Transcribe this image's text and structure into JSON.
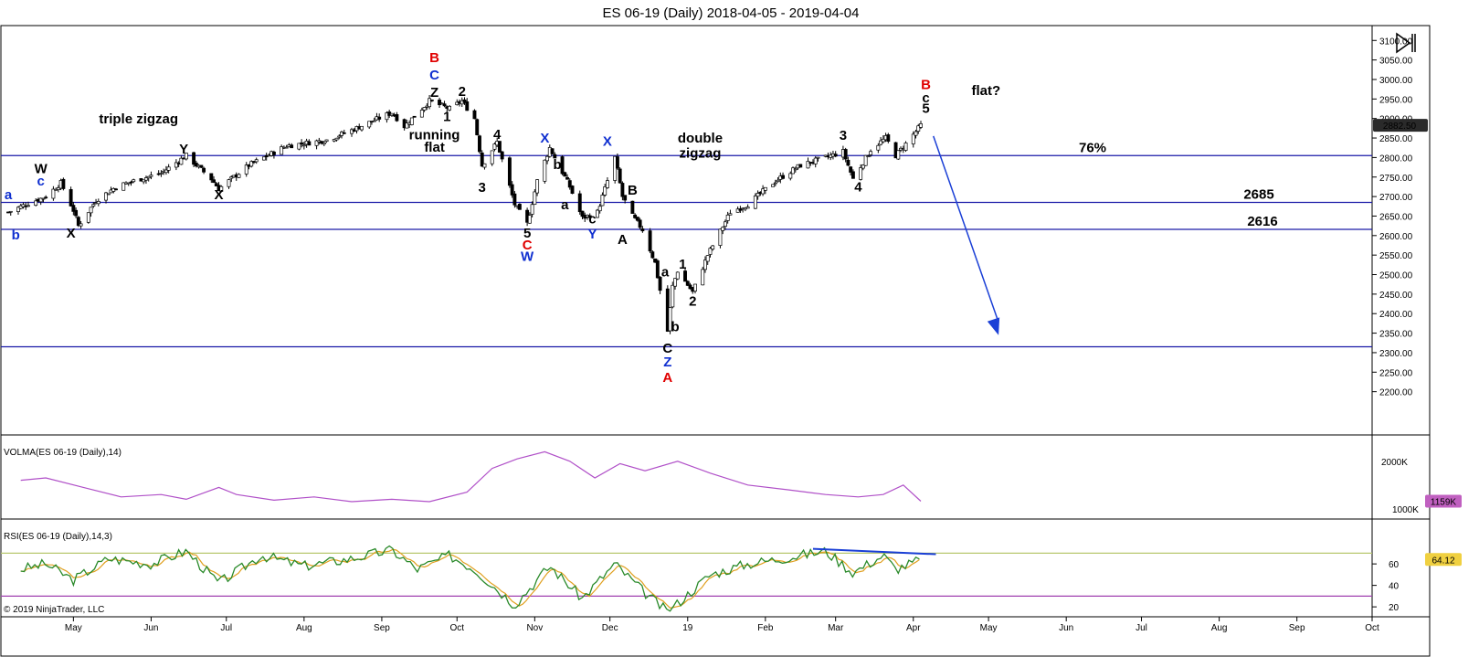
{
  "title": "ES 06-19 (Daily)  2018-04-05 - 2019-04-04",
  "copyright": "© 2019 NinjaTrader, LLC",
  "colors": {
    "up_candle": "#ffffff",
    "down_candle": "#000000",
    "hline": "#1a1aa8",
    "arrow": "#1a3fd6",
    "red": "#e00000",
    "blue": "#1030d0",
    "black": "#000000",
    "volma": "#b050c8",
    "rsi_fast": "#2a8a2a",
    "rsi_slow": "#e0a020",
    "rsi_upper": "#b8c870",
    "rsi_lower": "#a040b0",
    "price_badge": "#2a2a2a",
    "rsi_badge": "#f0d040",
    "vol_badge": "#c060c0"
  },
  "chart_data": {
    "type": "candlestick",
    "x_months": [
      "May",
      "Jun",
      "Jul",
      "Aug",
      "Sep",
      "Oct",
      "Nov",
      "Dec",
      "19",
      "Feb",
      "Mar",
      "Apr",
      "May",
      "Jun",
      "Jul",
      "Aug",
      "Sep",
      "Oct"
    ],
    "price_axis": {
      "ylim": [
        2150,
        3110
      ],
      "ticks": [
        "3100.00",
        "3050.00",
        "3000.00",
        "2950.00",
        "2900.00",
        "2850.00",
        "2800.00",
        "2750.00",
        "2700.00",
        "2650.00",
        "2600.00",
        "2550.00",
        "2500.00",
        "2450.00",
        "2400.00",
        "2350.00",
        "2300.00",
        "2250.00",
        "2200.00"
      ],
      "last_price": "2882.50"
    },
    "close_path": [
      [
        "2018-04-05",
        2660
      ],
      [
        "2018-04-12",
        2680
      ],
      [
        "2018-04-20",
        2700
      ],
      [
        "2018-04-26",
        2735
      ],
      [
        "2018-05-01",
        2665
      ],
      [
        "2018-05-03",
        2625
      ],
      [
        "2018-05-10",
        2690
      ],
      [
        "2018-05-18",
        2725
      ],
      [
        "2018-05-25",
        2740
      ],
      [
        "2018-06-05",
        2760
      ],
      [
        "2018-06-15",
        2805
      ],
      [
        "2018-06-25",
        2745
      ],
      [
        "2018-06-28",
        2720
      ],
      [
        "2018-07-10",
        2780
      ],
      [
        "2018-07-25",
        2830
      ],
      [
        "2018-08-10",
        2845
      ],
      [
        "2018-08-20",
        2870
      ],
      [
        "2018-09-05",
        2915
      ],
      [
        "2018-09-10",
        2880
      ],
      [
        "2018-09-20",
        2945
      ],
      [
        "2018-09-24",
        2935
      ],
      [
        "2018-09-28",
        2925
      ],
      [
        "2018-10-03",
        2945
      ],
      [
        "2018-10-08",
        2900
      ],
      [
        "2018-10-11",
        2780
      ],
      [
        "2018-10-17",
        2840
      ],
      [
        "2018-10-24",
        2680
      ],
      [
        "2018-10-29",
        2630
      ],
      [
        "2018-11-02",
        2740
      ],
      [
        "2018-11-07",
        2825
      ],
      [
        "2018-11-15",
        2725
      ],
      [
        "2018-11-20",
        2645
      ],
      [
        "2018-11-26",
        2660
      ],
      [
        "2018-12-03",
        2800
      ],
      [
        "2018-12-06",
        2700
      ],
      [
        "2018-12-10",
        2650
      ],
      [
        "2018-12-14",
        2615
      ],
      [
        "2018-12-19",
        2530
      ],
      [
        "2018-12-24",
        2355
      ],
      [
        "2018-12-26",
        2470
      ],
      [
        "2018-12-28",
        2510
      ],
      [
        "2019-01-03",
        2455
      ],
      [
        "2019-01-09",
        2550
      ],
      [
        "2019-01-18",
        2660
      ],
      [
        "2019-01-25",
        2680
      ],
      [
        "2019-02-05",
        2740
      ],
      [
        "2019-02-15",
        2780
      ],
      [
        "2019-02-25",
        2800
      ],
      [
        "2019-03-04",
        2815
      ],
      [
        "2019-03-08",
        2745
      ],
      [
        "2019-03-15",
        2820
      ],
      [
        "2019-03-21",
        2850
      ],
      [
        "2019-03-25",
        2805
      ],
      [
        "2019-03-29",
        2835
      ],
      [
        "2019-04-04",
        2882.5
      ]
    ],
    "horizontal_lines": [
      2805,
      2685,
      2616,
      2315
    ],
    "level_labels": [
      {
        "text": "76%",
        "price": 2805
      },
      {
        "text": "2685",
        "price": 2685
      },
      {
        "text": "2616",
        "price": 2616
      }
    ],
    "projection_arrow": {
      "from": [
        "2019-04-09",
        2855
      ],
      "to": [
        "2019-05-05",
        2345
      ]
    },
    "wave_labels": [
      {
        "text": "a",
        "date": "2018-04-05",
        "price": 2693,
        "color": "blue"
      },
      {
        "text": "b",
        "date": "2018-04-08",
        "price": 2590,
        "color": "blue"
      },
      {
        "text": "W",
        "date": "2018-04-18",
        "price": 2760,
        "color": "black"
      },
      {
        "text": "c",
        "date": "2018-04-18",
        "price": 2728,
        "color": "blue"
      },
      {
        "text": "X",
        "date": "2018-04-30",
        "price": 2595,
        "color": "black"
      },
      {
        "text": "Y",
        "date": "2018-06-14",
        "price": 2810,
        "color": "black"
      },
      {
        "text": "X",
        "date": "2018-06-28",
        "price": 2693,
        "color": "black"
      },
      {
        "text": "B",
        "date": "2018-09-22",
        "price": 3045,
        "color": "red"
      },
      {
        "text": "C",
        "date": "2018-09-22",
        "price": 3000,
        "color": "blue"
      },
      {
        "text": "Z",
        "date": "2018-09-22",
        "price": 2955,
        "color": "black"
      },
      {
        "text": "2",
        "date": "2018-10-03",
        "price": 2958,
        "color": "black"
      },
      {
        "text": "1",
        "date": "2018-09-27",
        "price": 2893,
        "color": "black"
      },
      {
        "text": "4",
        "date": "2018-10-17",
        "price": 2848,
        "color": "black"
      },
      {
        "text": "3",
        "date": "2018-10-11",
        "price": 2712,
        "color": "black"
      },
      {
        "text": "X",
        "date": "2018-11-05",
        "price": 2838,
        "color": "blue"
      },
      {
        "text": "b",
        "date": "2018-11-10",
        "price": 2771,
        "color": "black"
      },
      {
        "text": "a",
        "date": "2018-11-13",
        "price": 2668,
        "color": "black"
      },
      {
        "text": "c",
        "date": "2018-11-24",
        "price": 2631,
        "color": "black"
      },
      {
        "text": "Y",
        "date": "2018-11-24",
        "price": 2592,
        "color": "blue"
      },
      {
        "text": "X",
        "date": "2018-11-30",
        "price": 2830,
        "color": "blue"
      },
      {
        "text": "B",
        "date": "2018-12-10",
        "price": 2705,
        "color": "black"
      },
      {
        "text": "A",
        "date": "2018-12-06",
        "price": 2578,
        "color": "black"
      },
      {
        "text": "5",
        "date": "2018-10-29",
        "price": 2595,
        "color": "black"
      },
      {
        "text": "C",
        "date": "2018-10-29",
        "price": 2565,
        "color": "red"
      },
      {
        "text": "W",
        "date": "2018-10-29",
        "price": 2535,
        "color": "blue"
      },
      {
        "text": "a",
        "date": "2018-12-23",
        "price": 2495,
        "color": "black"
      },
      {
        "text": "1",
        "date": "2018-12-30",
        "price": 2515,
        "color": "black"
      },
      {
        "text": "2",
        "date": "2019-01-03",
        "price": 2420,
        "color": "black"
      },
      {
        "text": "b",
        "date": "2018-12-27",
        "price": 2355,
        "color": "black"
      },
      {
        "text": "C",
        "date": "2018-12-24",
        "price": 2300,
        "color": "black"
      },
      {
        "text": "Z",
        "date": "2018-12-24",
        "price": 2265,
        "color": "blue"
      },
      {
        "text": "A",
        "date": "2018-12-24",
        "price": 2225,
        "color": "red"
      },
      {
        "text": "3",
        "date": "2019-03-04",
        "price": 2845,
        "color": "black"
      },
      {
        "text": "4",
        "date": "2019-03-10",
        "price": 2713,
        "color": "black"
      },
      {
        "text": "B",
        "date": "2019-04-06",
        "price": 2975,
        "color": "red"
      },
      {
        "text": "c",
        "date": "2019-04-06",
        "price": 2942,
        "color": "black"
      },
      {
        "text": "5",
        "date": "2019-04-06",
        "price": 2914,
        "color": "black"
      }
    ],
    "annotations": [
      {
        "text": "triple zigzag",
        "date": "2018-05-27",
        "price": 2888
      },
      {
        "text": "running",
        "date": "2018-09-22",
        "price": 2847
      },
      {
        "text": "flat",
        "date": "2018-09-22",
        "price": 2815
      },
      {
        "text": "double",
        "date": "2019-01-06",
        "price": 2838
      },
      {
        "text": "zigzag",
        "date": "2019-01-06",
        "price": 2800
      },
      {
        "text": "flat?",
        "date": "2019-04-30",
        "price": 2960
      }
    ],
    "volma": {
      "title": "VOLMA(ES 06-19 (Daily),14)",
      "tick": "2000K",
      "ylim": [
        900,
        2400
      ],
      "last": "1159K",
      "path": [
        [
          "2018-04-10",
          1600
        ],
        [
          "2018-04-20",
          1650
        ],
        [
          "2018-05-05",
          1450
        ],
        [
          "2018-05-20",
          1250
        ],
        [
          "2018-06-05",
          1300
        ],
        [
          "2018-06-15",
          1200
        ],
        [
          "2018-06-28",
          1450
        ],
        [
          "2018-07-05",
          1300
        ],
        [
          "2018-07-20",
          1180
        ],
        [
          "2018-08-05",
          1250
        ],
        [
          "2018-08-20",
          1150
        ],
        [
          "2018-09-05",
          1200
        ],
        [
          "2018-09-20",
          1150
        ],
        [
          "2018-10-05",
          1350
        ],
        [
          "2018-10-15",
          1850
        ],
        [
          "2018-10-25",
          2050
        ],
        [
          "2018-11-05",
          2200
        ],
        [
          "2018-11-15",
          2000
        ],
        [
          "2018-11-25",
          1650
        ],
        [
          "2018-12-05",
          1950
        ],
        [
          "2018-12-15",
          1800
        ],
        [
          "2018-12-28",
          2000
        ],
        [
          "2019-01-10",
          1750
        ],
        [
          "2019-01-25",
          1500
        ],
        [
          "2019-02-10",
          1400
        ],
        [
          "2019-02-25",
          1300
        ],
        [
          "2019-03-10",
          1250
        ],
        [
          "2019-03-20",
          1300
        ],
        [
          "2019-03-28",
          1500
        ],
        [
          "2019-04-04",
          1159
        ]
      ]
    },
    "rsi": {
      "title": "RSI(ES 06-19 (Daily),14,3)",
      "ticks": [
        "60",
        "40",
        "20"
      ],
      "ylim": [
        15,
        95
      ],
      "levels": [
        70,
        30
      ],
      "last": "64.12",
      "fast_path": [
        [
          "2018-04-10",
          55
        ],
        [
          "2018-04-20",
          60
        ],
        [
          "2018-05-01",
          45
        ],
        [
          "2018-05-15",
          65
        ],
        [
          "2018-06-01",
          60
        ],
        [
          "2018-06-15",
          72
        ],
        [
          "2018-06-28",
          42
        ],
        [
          "2018-07-15",
          68
        ],
        [
          "2018-08-01",
          58
        ],
        [
          "2018-08-20",
          65
        ],
        [
          "2018-09-05",
          73
        ],
        [
          "2018-09-15",
          55
        ],
        [
          "2018-09-28",
          68
        ],
        [
          "2018-10-08",
          55
        ],
        [
          "2018-10-24",
          22
        ],
        [
          "2018-11-07",
          58
        ],
        [
          "2018-11-20",
          28
        ],
        [
          "2018-12-03",
          60
        ],
        [
          "2018-12-14",
          35
        ],
        [
          "2018-12-24",
          15
        ],
        [
          "2019-01-10",
          50
        ],
        [
          "2019-01-25",
          60
        ],
        [
          "2019-02-10",
          66
        ],
        [
          "2019-02-25",
          72
        ],
        [
          "2019-03-08",
          52
        ],
        [
          "2019-03-20",
          68
        ],
        [
          "2019-03-25",
          55
        ],
        [
          "2019-04-04",
          64
        ]
      ],
      "trend_line": {
        "from": [
          "2019-02-20",
          74
        ],
        "to": [
          "2019-04-10",
          69
        ]
      }
    }
  }
}
